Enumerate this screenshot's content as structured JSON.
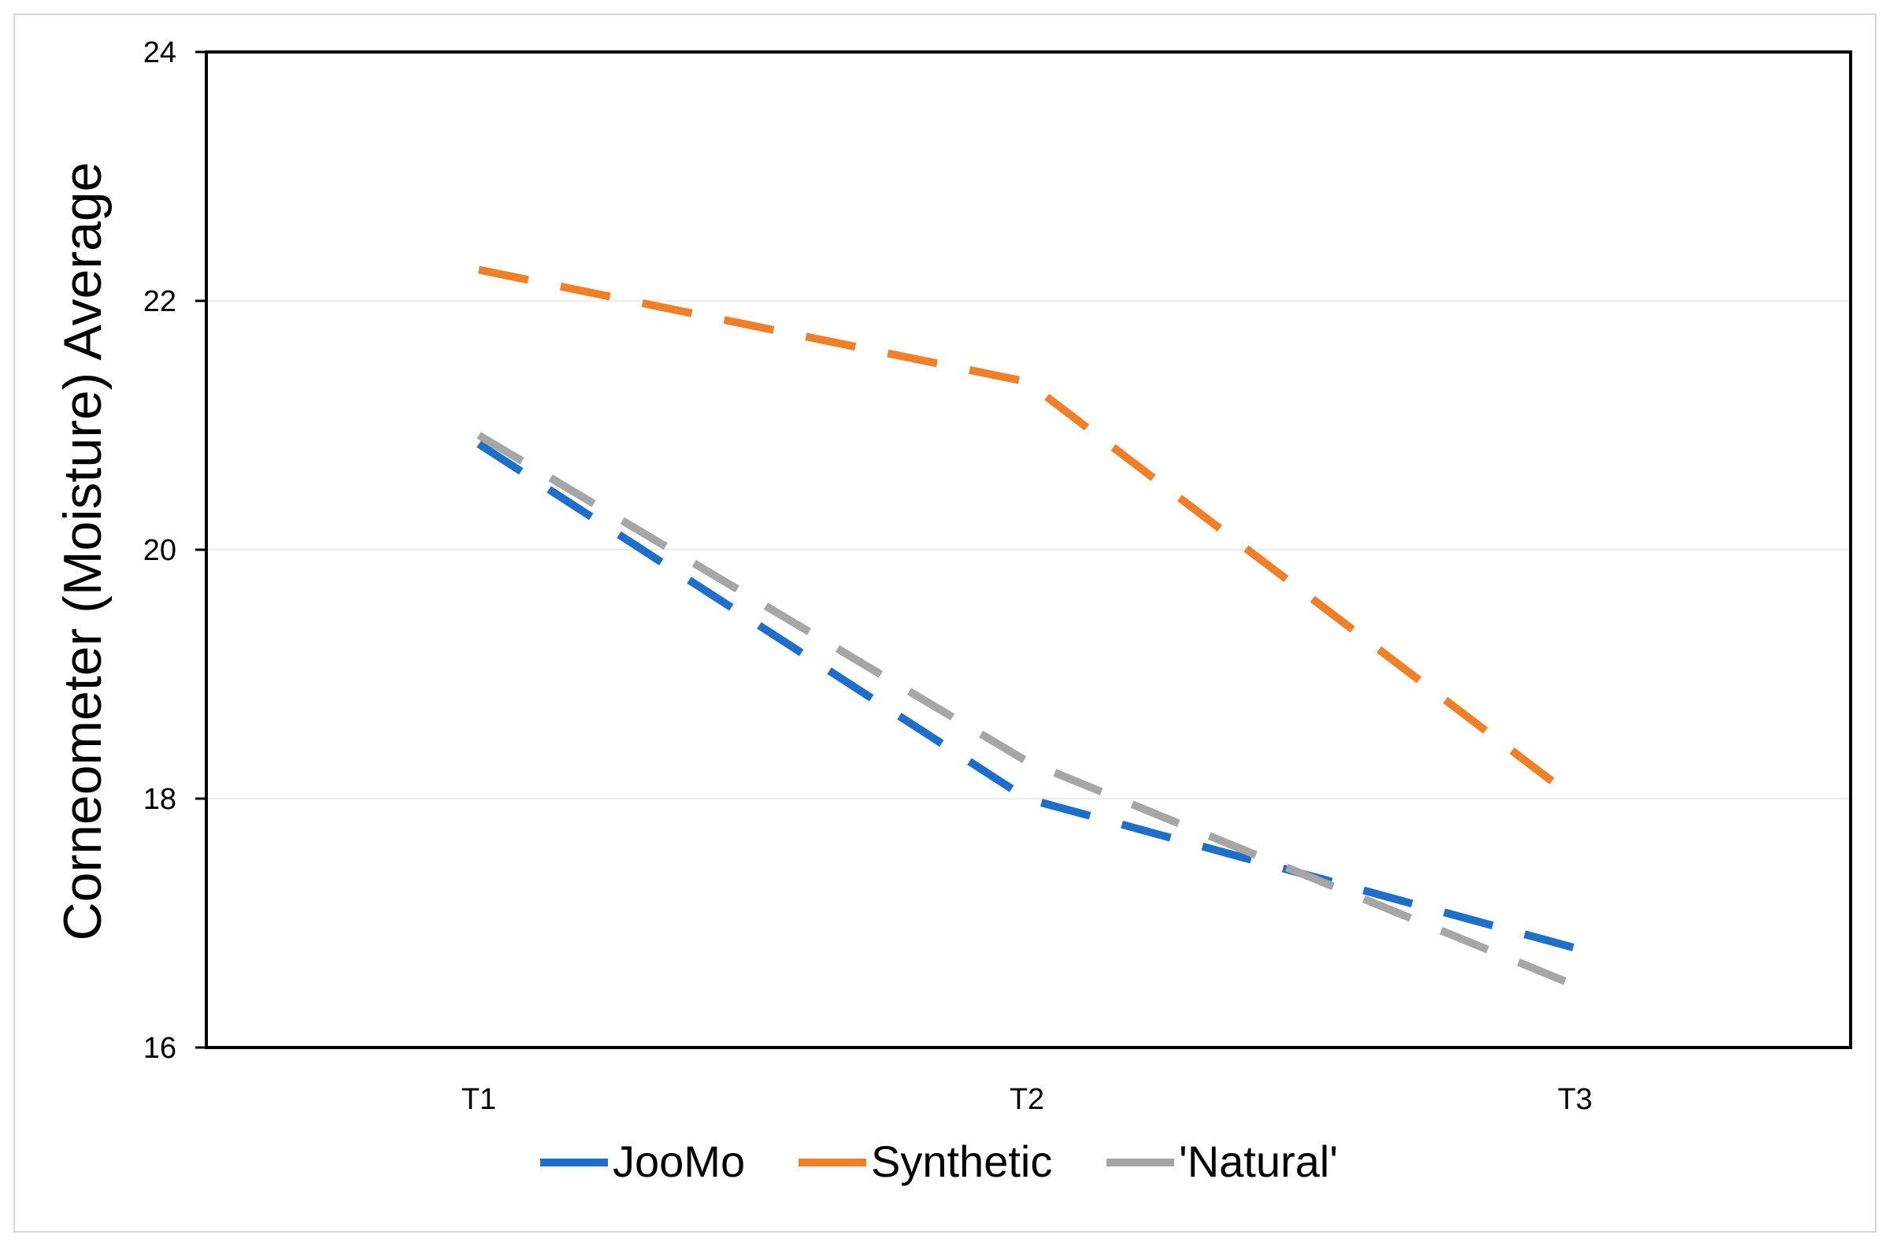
{
  "chart_data": {
    "type": "line",
    "title": "",
    "xlabel": "",
    "ylabel": "Corneometer (Moisture) Average",
    "categories": [
      "T1",
      "T2",
      "T3"
    ],
    "ylim": [
      16,
      24
    ],
    "yticks": [
      "16",
      "18",
      "20",
      "22",
      "24"
    ],
    "ytick_values": [
      16,
      18,
      20,
      22,
      24
    ],
    "grid": true,
    "legend_position": "bottom",
    "line_style": "dashed",
    "series": [
      {
        "name": "JooMo",
        "color": "#1f6fc9",
        "values": [
          20.85,
          18.0,
          16.8
        ]
      },
      {
        "name": "Synthetic",
        "color": "#f07f2a",
        "values": [
          22.25,
          21.35,
          18.0
        ]
      },
      {
        "name": "'Natural'",
        "color": "#a6a6a6",
        "values": [
          20.92,
          18.3,
          16.5
        ]
      }
    ]
  }
}
